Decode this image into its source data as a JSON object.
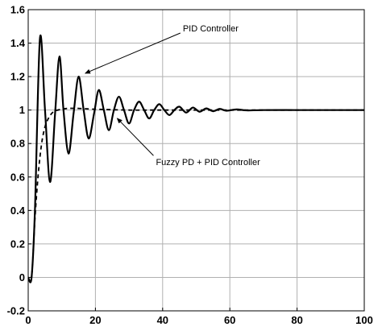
{
  "chart_data": {
    "type": "line",
    "title": "",
    "xlabel": "",
    "ylabel": "",
    "xlim": [
      0,
      100
    ],
    "ylim": [
      -0.2,
      1.6
    ],
    "x_ticks": [
      0,
      20,
      40,
      60,
      80,
      100
    ],
    "x_tick_labels": [
      "0",
      "20",
      "40",
      "60",
      "80",
      "100"
    ],
    "y_ticks": [
      -0.2,
      0,
      0.2,
      0.4,
      0.6,
      0.8,
      1,
      1.2,
      1.4,
      1.6
    ],
    "y_tick_labels": [
      "-0.2",
      "0",
      "0.2",
      "0.4",
      "0.6",
      "0.8",
      "1",
      "1.2",
      "1.4",
      "1.6"
    ],
    "grid": true,
    "line_color": "#000000",
    "series": [
      {
        "style": "solid",
        "x": [
          0,
          1,
          2,
          3.5,
          5,
          6.5,
          8,
          9.3,
          10.5,
          12,
          13.5,
          15,
          16.5,
          18,
          19.6,
          21,
          22.5,
          24,
          25.5,
          27,
          28.5,
          30,
          31.5,
          33,
          34.5,
          36,
          37.5,
          39,
          40.5,
          42,
          43.5,
          45,
          47,
          49,
          51,
          53,
          55,
          57,
          59,
          62,
          65,
          70,
          80,
          90,
          100
        ],
        "y": [
          0,
          0,
          0.4,
          1.43,
          1.0,
          0.57,
          0.98,
          1.32,
          1.0,
          0.74,
          0.98,
          1.2,
          1.0,
          0.83,
          0.98,
          1.12,
          1.0,
          0.88,
          1.0,
          1.08,
          1.0,
          0.92,
          1.0,
          1.05,
          1.0,
          0.95,
          1.0,
          1.035,
          1.0,
          0.97,
          1.0,
          1.02,
          0.985,
          1.015,
          0.99,
          1.01,
          0.993,
          1.007,
          0.996,
          1.004,
          0.998,
          1.0,
          1.0,
          1.0,
          1.0
        ]
      },
      {
        "style": "dashed",
        "x": [
          0,
          1,
          2,
          3,
          4,
          5,
          6,
          7,
          8,
          10,
          12,
          15,
          20,
          30,
          40,
          60,
          80,
          100
        ],
        "y": [
          0,
          0,
          0.35,
          0.62,
          0.8,
          0.9,
          0.95,
          0.98,
          0.995,
          1.005,
          1.01,
          1.01,
          1.005,
          1.0,
          1.0,
          1.0,
          1.0,
          1.0
        ]
      }
    ],
    "annotations": [
      {
        "text": "PID Controller",
        "text_at": [
          46,
          1.47
        ],
        "arrow_to": [
          17,
          1.22
        ]
      },
      {
        "text": "Fuzzy PD + PID Controller",
        "text_at": [
          38,
          0.67
        ],
        "arrow_to": [
          26.5,
          0.95
        ]
      }
    ]
  }
}
